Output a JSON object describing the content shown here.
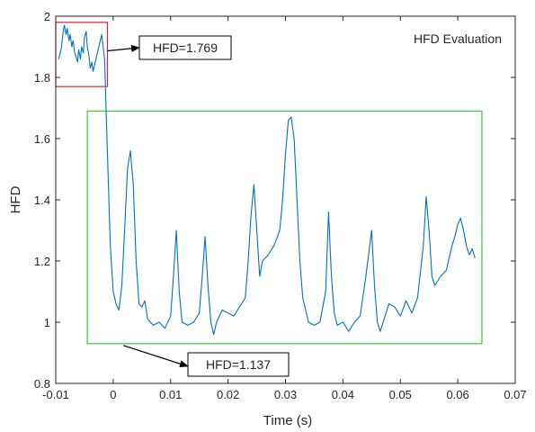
{
  "chart_data": {
    "type": "line",
    "title": "HFD Evaluation",
    "xlabel": "Time (s)",
    "ylabel": "HFD",
    "xlim": [
      -0.01,
      0.07
    ],
    "ylim": [
      0.8,
      2.0
    ],
    "xticks": [
      -0.01,
      0,
      0.01,
      0.02,
      0.03,
      0.04,
      0.05,
      0.06,
      0.07
    ],
    "xtick_labels": [
      "-0.01",
      "0",
      "0.01",
      "0.02",
      "0.03",
      "0.04",
      "0.05",
      "0.06",
      "0.07"
    ],
    "yticks": [
      0.8,
      1.0,
      1.2,
      1.4,
      1.6,
      1.8,
      2.0
    ],
    "ytick_labels": [
      "0.8",
      "1",
      "1.2",
      "1.4",
      "1.6",
      "1.8",
      "2"
    ],
    "grid": false,
    "series": [
      {
        "color": "#0072bd",
        "x": [
          -0.0095,
          -0.0092,
          -0.009,
          -0.0087,
          -0.0085,
          -0.0082,
          -0.008,
          -0.0077,
          -0.0075,
          -0.0072,
          -0.007,
          -0.0067,
          -0.0065,
          -0.0062,
          -0.006,
          -0.0057,
          -0.0055,
          -0.0052,
          -0.005,
          -0.0047,
          -0.0045,
          -0.0042,
          -0.004,
          -0.0037,
          -0.0035,
          -0.003,
          -0.0025,
          -0.002,
          -0.0015,
          -0.001,
          -0.0005,
          0.0,
          0.0005,
          0.001,
          0.0015,
          0.002,
          0.0025,
          0.003,
          0.0035,
          0.004,
          0.0045,
          0.005,
          0.0055,
          0.006,
          0.007,
          0.008,
          0.009,
          0.01,
          0.0105,
          0.011,
          0.0115,
          0.012,
          0.013,
          0.014,
          0.015,
          0.0155,
          0.016,
          0.0165,
          0.017,
          0.0175,
          0.018,
          0.019,
          0.02,
          0.021,
          0.022,
          0.023,
          0.0235,
          0.024,
          0.0245,
          0.025,
          0.0255,
          0.026,
          0.027,
          0.028,
          0.029,
          0.0295,
          0.03,
          0.0305,
          0.031,
          0.0315,
          0.032,
          0.0325,
          0.033,
          0.034,
          0.035,
          0.036,
          0.037,
          0.0375,
          0.038,
          0.0385,
          0.039,
          0.04,
          0.041,
          0.042,
          0.043,
          0.044,
          0.045,
          0.0455,
          0.046,
          0.0465,
          0.047,
          0.048,
          0.049,
          0.05,
          0.051,
          0.052,
          0.053,
          0.054,
          0.0545,
          0.055,
          0.0555,
          0.056,
          0.057,
          0.058,
          0.059,
          0.0595,
          0.06,
          0.0605,
          0.061,
          0.0615,
          0.062,
          0.0625,
          0.063
        ],
        "y": [
          1.86,
          1.88,
          1.9,
          1.95,
          1.97,
          1.94,
          1.96,
          1.92,
          1.94,
          1.9,
          1.92,
          1.88,
          1.87,
          1.85,
          1.89,
          1.86,
          1.9,
          1.88,
          1.93,
          1.95,
          1.9,
          1.87,
          1.83,
          1.85,
          1.82,
          1.86,
          1.9,
          1.94,
          1.86,
          1.55,
          1.25,
          1.1,
          1.06,
          1.04,
          1.12,
          1.3,
          1.5,
          1.56,
          1.45,
          1.2,
          1.06,
          1.05,
          1.07,
          1.01,
          0.99,
          1.0,
          0.98,
          1.02,
          1.15,
          1.3,
          1.1,
          1.0,
          0.99,
          1.0,
          1.03,
          1.15,
          1.28,
          1.12,
          1.0,
          0.96,
          1.0,
          1.04,
          1.03,
          1.02,
          1.05,
          1.08,
          1.2,
          1.35,
          1.45,
          1.3,
          1.15,
          1.2,
          1.22,
          1.25,
          1.3,
          1.4,
          1.55,
          1.66,
          1.67,
          1.6,
          1.4,
          1.2,
          1.08,
          1.0,
          0.99,
          1.0,
          1.1,
          1.36,
          1.15,
          1.03,
          0.99,
          1.0,
          0.97,
          1.0,
          1.02,
          1.15,
          1.3,
          1.12,
          1.0,
          0.97,
          1.0,
          1.06,
          1.05,
          1.02,
          1.07,
          1.03,
          1.08,
          1.25,
          1.41,
          1.3,
          1.15,
          1.12,
          1.15,
          1.17,
          1.25,
          1.28,
          1.32,
          1.34,
          1.3,
          1.25,
          1.22,
          1.24,
          1.21
        ]
      }
    ],
    "annotations": [
      {
        "text": "HFD=1.769",
        "box_color": "#e8202a",
        "region": {
          "x": [
            -0.01,
            -0.001
          ],
          "y": [
            1.77,
            1.98
          ]
        }
      },
      {
        "text": "HFD=1.137",
        "box_color": "#33cc33",
        "region": {
          "x": [
            -0.0045,
            0.0642
          ],
          "y": [
            0.93,
            1.69
          ]
        }
      }
    ]
  }
}
